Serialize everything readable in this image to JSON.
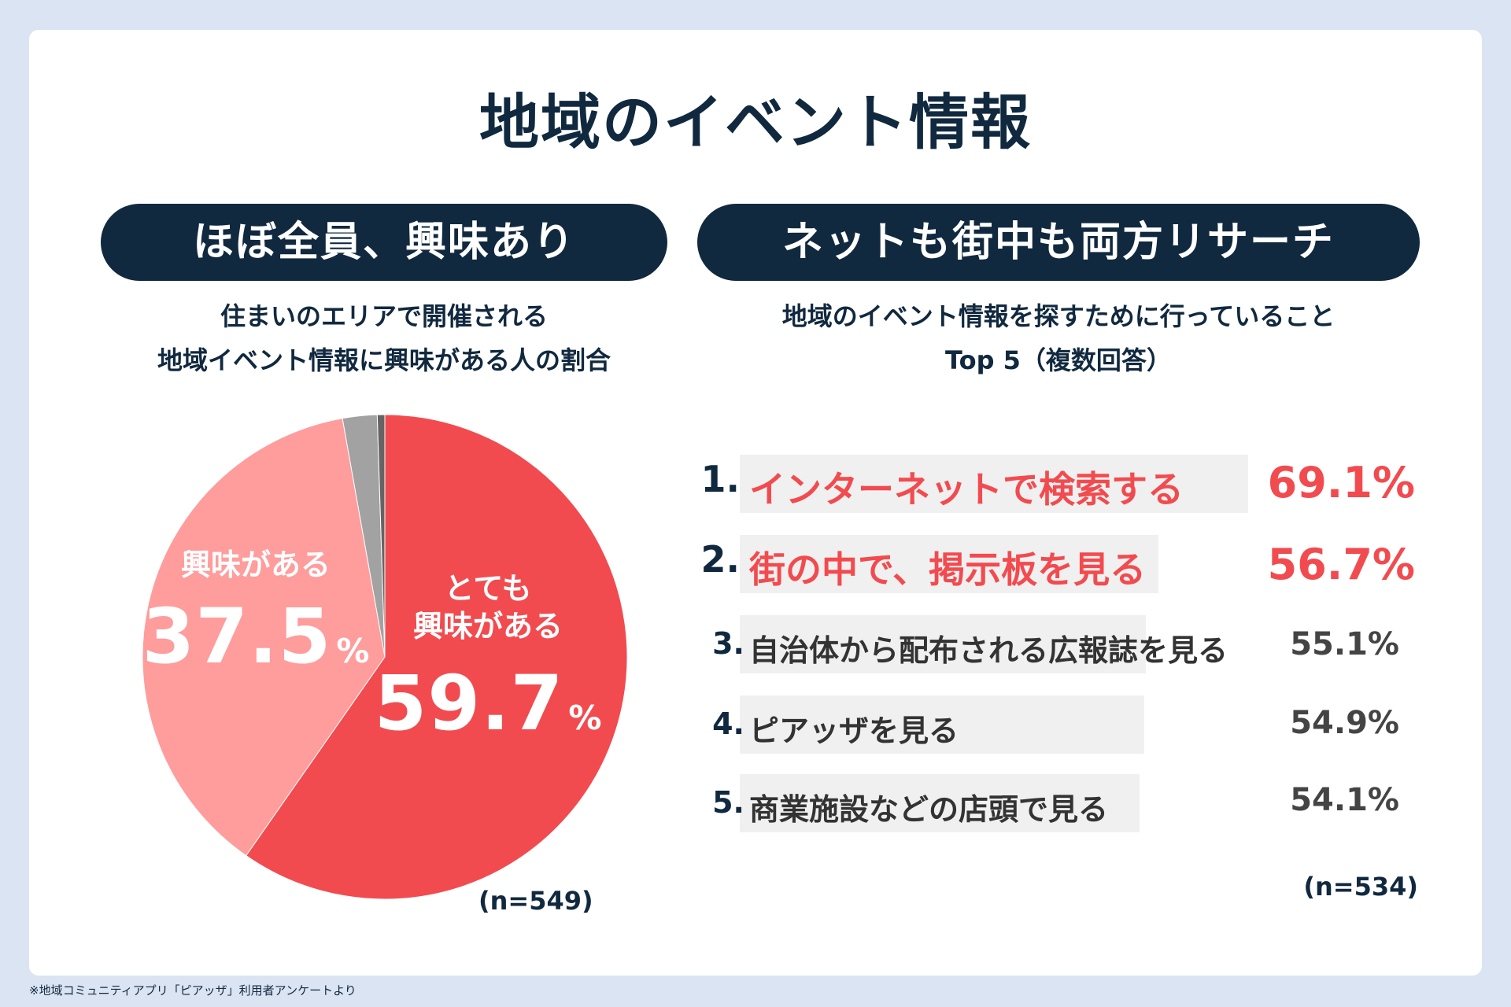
{
  "title": "地域のイベント情報",
  "left_panel": {
    "pill": "ほぼ全員、興味あり",
    "subtitle_line1": "住まいのエリアで開催される",
    "subtitle_line2": "地域イベント情報に興味がある人の割合",
    "sample": "(n=549)",
    "slice_labels": {
      "very_interested": {
        "text1": "とても",
        "text2": "興味がある",
        "value": "59.7",
        "unit": "%"
      },
      "interested": {
        "text1": "興味がある",
        "value": "37.5",
        "unit": "%"
      }
    }
  },
  "right_panel": {
    "pill": "ネットも街中も両方リサーチ",
    "subtitle_line1": "地域のイベント情報を探すために行っていること",
    "subtitle_line2": "Top 5（複数回答）",
    "sample": "(n=534)"
  },
  "footnote": "※地域コミュニティアプリ「ピアッザ」利用者アンケートより",
  "colors": {
    "navy": "#11293f",
    "red": "#f24b4f",
    "pink": "#ff9c9c",
    "gray": "#a2a2a2",
    "dark_gray": "#646464",
    "bar_bg": "#f0f0f0"
  },
  "chart_data": [
    {
      "type": "pie",
      "title": "住まいのエリアで開催される地域イベント情報に興味がある人の割合",
      "categories": [
        "とても興味がある",
        "興味がある",
        "",
        ""
      ],
      "values": [
        59.7,
        37.5,
        2.3,
        0.5
      ],
      "colors": [
        "#f24b4f",
        "#ff9c9c",
        "#a2a2a2",
        "#646464"
      ],
      "n": 549
    },
    {
      "type": "table",
      "title": "地域のイベント情報を探すために行っていること Top 5（複数回答）",
      "rows": [
        {
          "rank": "1.",
          "label": "インターネットで検索する",
          "value": 69.1,
          "display": "69.1%",
          "highlight": true
        },
        {
          "rank": "2.",
          "label": "街の中で、掲示板を見る",
          "value": 56.7,
          "display": "56.7%",
          "highlight": true
        },
        {
          "rank": "3.",
          "label": "自治体から配布される広報誌を見る",
          "value": 55.1,
          "display": "55.1%",
          "highlight": false
        },
        {
          "rank": "4.",
          "label": "ピアッザを見る",
          "value": 54.9,
          "display": "54.9%",
          "highlight": false
        },
        {
          "rank": "5.",
          "label": "商業施設などの店頭で見る",
          "value": 54.1,
          "display": "54.1%",
          "highlight": false
        }
      ],
      "n": 534
    }
  ]
}
